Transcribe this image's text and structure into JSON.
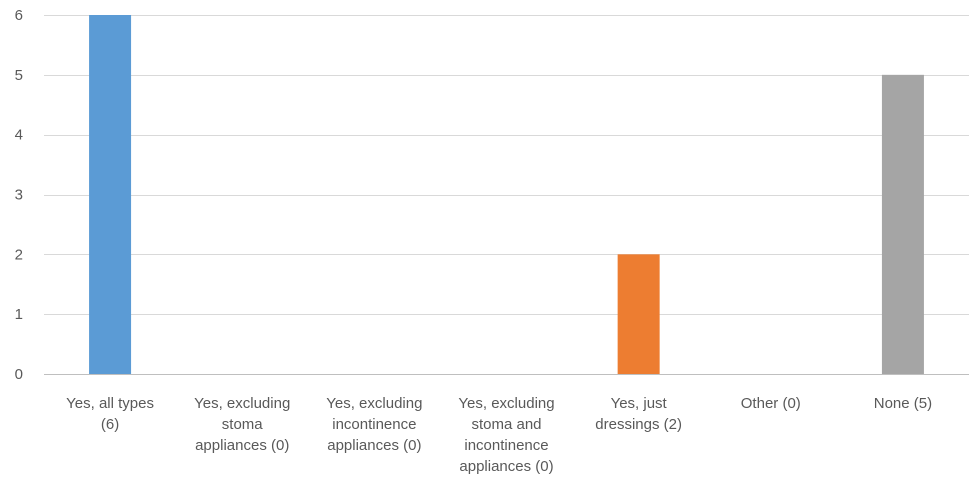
{
  "chart_data": {
    "type": "bar",
    "title": "",
    "xlabel": "",
    "ylabel": "",
    "ylim": [
      0,
      6
    ],
    "yticks": [
      0,
      1,
      2,
      3,
      4,
      5,
      6
    ],
    "grid": true,
    "legend": "none",
    "categories": [
      [
        "Yes, all types",
        "(6)"
      ],
      [
        "Yes, excluding",
        "stoma",
        "appliances (0)"
      ],
      [
        "Yes, excluding",
        "incontinence",
        "appliances (0)"
      ],
      [
        "Yes, excluding",
        "stoma and",
        "incontinence",
        "appliances (0)"
      ],
      [
        "Yes, just",
        "dressings (2)"
      ],
      [
        "Other (0)"
      ],
      [
        "None (5)"
      ]
    ],
    "values": [
      6,
      0,
      0,
      0,
      2,
      0,
      5
    ],
    "colors": [
      "#5b9bd5",
      "#5b9bd5",
      "#5b9bd5",
      "#5b9bd5",
      "#ed7d31",
      "#a5a5a5",
      "#a5a5a5"
    ]
  }
}
